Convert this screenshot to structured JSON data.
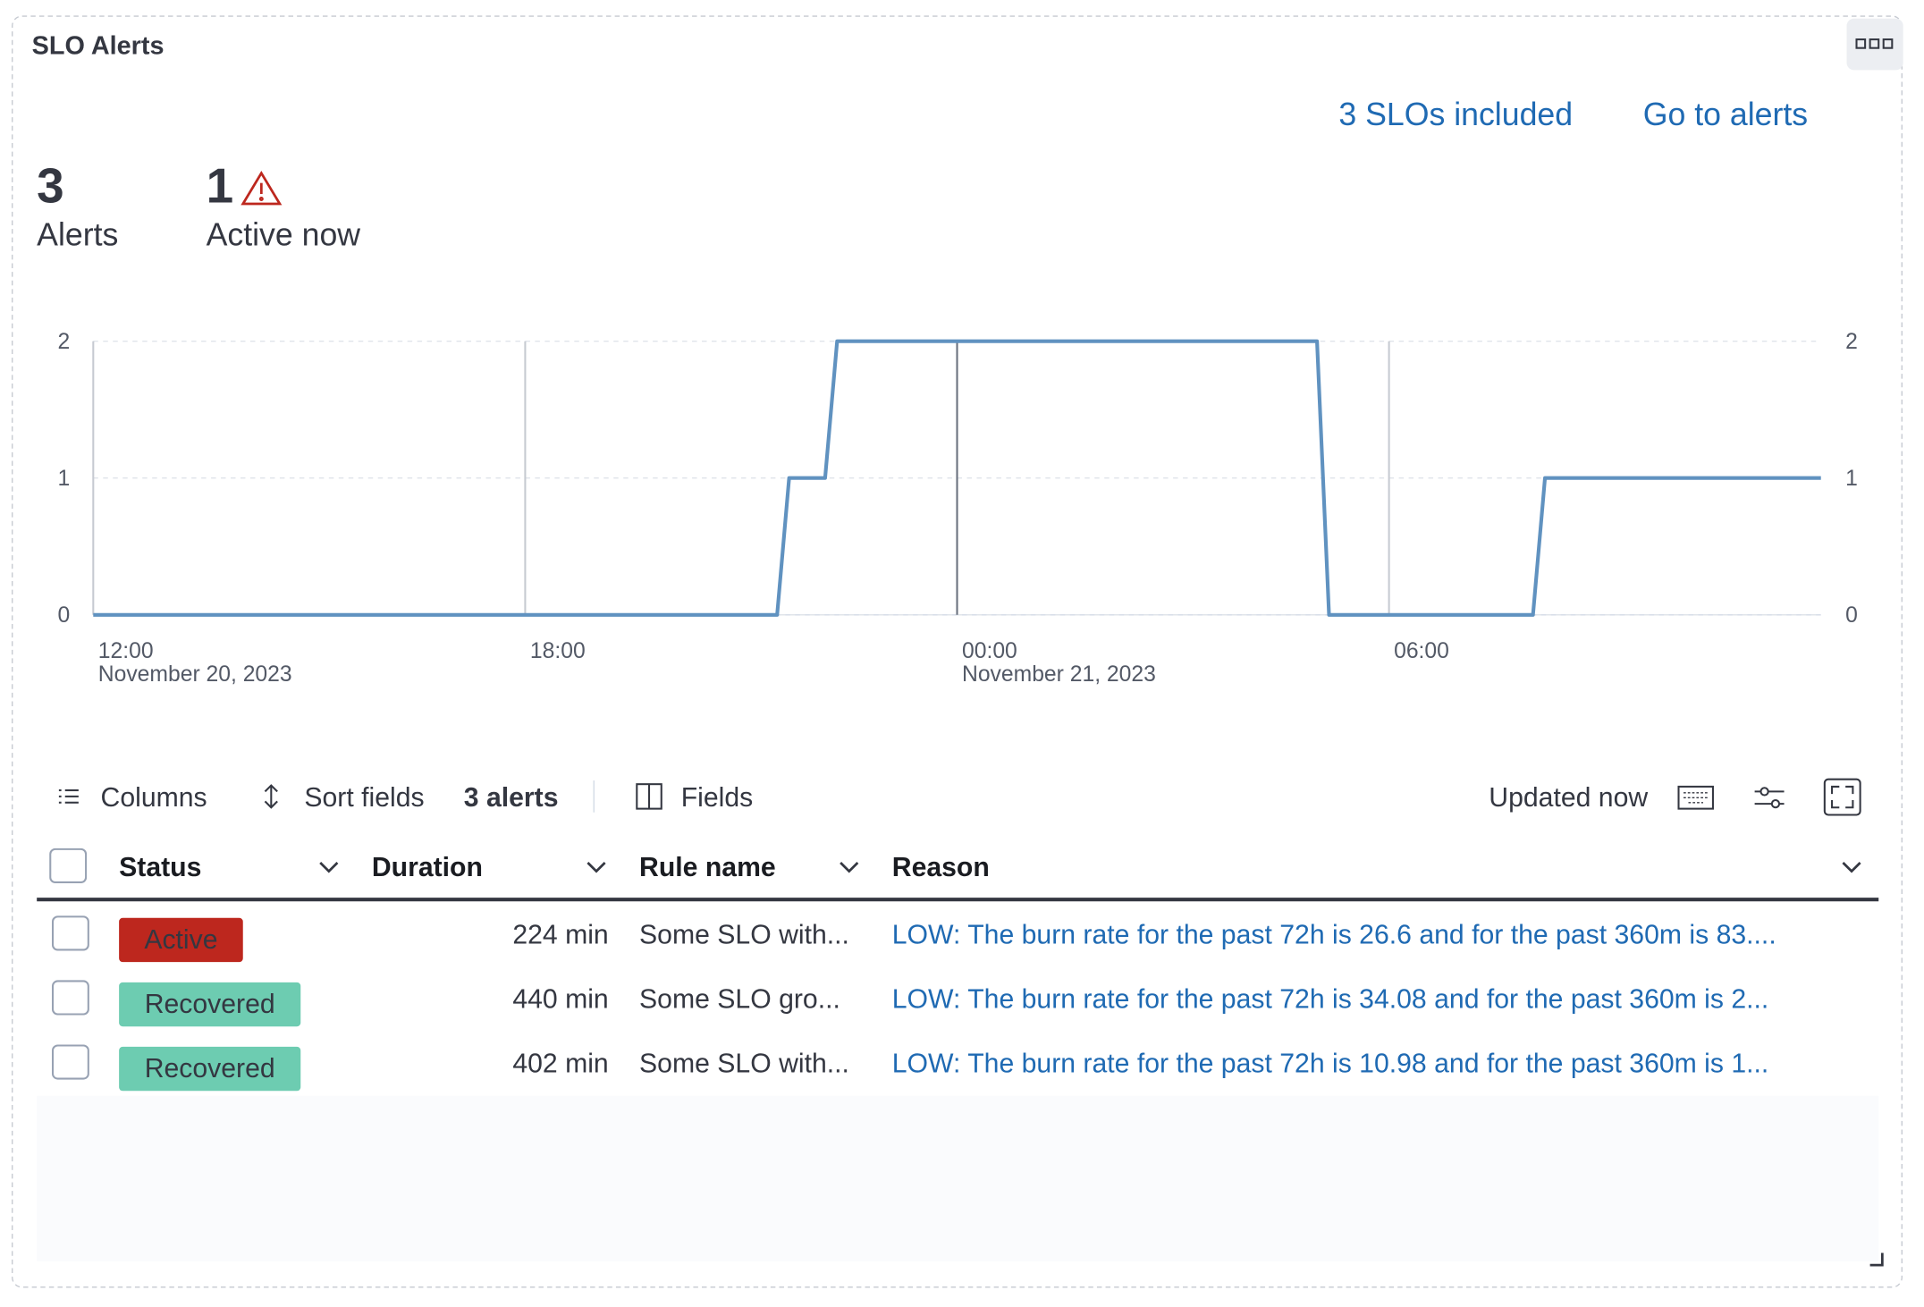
{
  "panel": {
    "title": "SLO Alerts"
  },
  "links": [
    "3 SLOs included",
    "Go to alerts"
  ],
  "stats": [
    {
      "value": "3",
      "label": "Alerts"
    },
    {
      "value": "1",
      "label": "Active now"
    }
  ],
  "chart_data": {
    "type": "line",
    "x": [
      "2023-11-20T12:00",
      "2023-11-20T21:30",
      "2023-11-20T21:40",
      "2023-11-20T22:10",
      "2023-11-20T22:20",
      "2023-11-21T05:00",
      "2023-11-21T05:10",
      "2023-11-21T08:00",
      "2023-11-21T08:10",
      "2023-11-21T12:00"
    ],
    "series": [
      {
        "name": "Alerts",
        "color": "#6092c0",
        "values": [
          0,
          0,
          1,
          1,
          2,
          2,
          0,
          0,
          1,
          1
        ]
      }
    ],
    "xlim": [
      "2023-11-20T12:00",
      "2023-11-21T12:00"
    ],
    "xticks": [
      {
        "value": "2023-11-20T12:00",
        "label": "12:00",
        "sublabel": "November 20, 2023"
      },
      {
        "value": "2023-11-20T18:00",
        "label": "18:00"
      },
      {
        "value": "2023-11-21T00:00",
        "label": "00:00",
        "sublabel": "November 21, 2023"
      },
      {
        "value": "2023-11-21T06:00",
        "label": "06:00"
      }
    ],
    "ylim": [
      0,
      2
    ],
    "yticks": [
      0,
      1,
      2
    ],
    "y2lim": [
      0,
      2
    ],
    "y2ticks": [
      0,
      1,
      2
    ],
    "grid": true
  },
  "toolbar": {
    "columns": "Columns",
    "sort": "Sort fields",
    "count": "3 alerts",
    "fields": "Fields",
    "updated": "Updated now"
  },
  "table": {
    "headers": [
      "Status",
      "Duration",
      "Rule name",
      "Reason"
    ],
    "rows": [
      [
        "Active",
        "224 min",
        "Some SLO with...",
        "LOW: The burn rate for the past 72h is 26.6 and for the past 360m is 83...."
      ],
      [
        "Recovered",
        "440 min",
        "Some SLO gro...",
        "LOW: The burn rate for the past 72h is 34.08 and for the past 360m is 2..."
      ],
      [
        "Recovered",
        "402 min",
        "Some SLO with...",
        "LOW: The burn rate for the past 72h is 10.98 and for the past 360m is 1..."
      ]
    ]
  }
}
